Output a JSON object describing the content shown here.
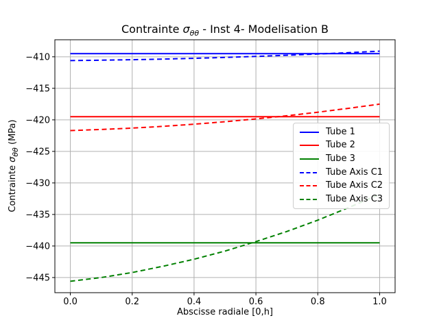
{
  "figure": {
    "background": "#ffffff",
    "spine_color": "#000000",
    "grid_color": "#b0b0b0"
  },
  "title": {
    "prefix": "Contrainte ",
    "math_symbol": "σ",
    "math_subscript": "θθ",
    "suffix": " - Inst 4- Modelisation B"
  },
  "axes": {
    "xlabel": "Abscisse radiale [0,h]",
    "ylabel_prefix": "Contrainte ",
    "ylabel_symbol": "σ",
    "ylabel_subscript": "θθ",
    "ylabel_suffix": " (MPa)"
  },
  "chart_data": {
    "type": "line",
    "title": "Contrainte σθθ - Inst 4- Modelisation B",
    "xlabel": "Abscisse radiale [0,h]",
    "ylabel": "Contrainte σθθ (MPa)",
    "grid": true,
    "xlim": [
      -0.05,
      1.05
    ],
    "ylim": [
      -447.4,
      -407.3
    ],
    "x_ticks": {
      "values": [
        0.0,
        0.2,
        0.4,
        0.6,
        0.8,
        1.0
      ],
      "labels": [
        "0.0",
        "0.2",
        "0.4",
        "0.6",
        "0.8",
        "1.0"
      ]
    },
    "y_ticks": {
      "values": [
        -410,
        -415,
        -420,
        -425,
        -430,
        -435,
        -440,
        -445
      ],
      "labels": [
        "−410",
        "−415",
        "−420",
        "−425",
        "−430",
        "−435",
        "−440",
        "−445"
      ]
    },
    "x": [
      0.0,
      0.1,
      0.2,
      0.3,
      0.4,
      0.5,
      0.6,
      0.7,
      0.8,
      0.9,
      1.0
    ],
    "series": [
      {
        "name": "Tube 1",
        "color": "#0000ff",
        "style": "solid",
        "values": [
          -409.5,
          -409.5,
          -409.5,
          -409.5,
          -409.5,
          -409.5,
          -409.5,
          -409.5,
          -409.5,
          -409.5,
          -409.5
        ]
      },
      {
        "name": "Tube 2",
        "color": "#ff0000",
        "style": "solid",
        "values": [
          -419.5,
          -419.5,
          -419.5,
          -419.5,
          -419.5,
          -419.5,
          -419.5,
          -419.5,
          -419.5,
          -419.5,
          -419.5
        ]
      },
      {
        "name": "Tube 3",
        "color": "#008000",
        "style": "solid",
        "values": [
          -439.5,
          -439.5,
          -439.5,
          -439.5,
          -439.5,
          -439.5,
          -439.5,
          -439.5,
          -439.5,
          -439.5,
          -439.5
        ]
      },
      {
        "name": "Tube Axis C1",
        "color": "#0000ff",
        "style": "dashed",
        "values": [
          -410.6,
          -410.54,
          -410.46,
          -410.36,
          -410.24,
          -410.1,
          -409.94,
          -409.76,
          -409.56,
          -409.34,
          -409.1
        ]
      },
      {
        "name": "Tube Axis C2",
        "color": "#ff0000",
        "style": "dashed",
        "values": [
          -421.7,
          -421.53,
          -421.31,
          -421.03,
          -420.69,
          -420.3,
          -419.85,
          -419.35,
          -418.79,
          -418.17,
          -417.5
        ]
      },
      {
        "name": "Tube Axis C3",
        "color": "#008000",
        "style": "dashed",
        "values": [
          -445.6,
          -445.0,
          -444.2,
          -443.2,
          -442.1,
          -440.8,
          -439.3,
          -437.7,
          -435.9,
          -433.9,
          -431.8
        ]
      }
    ],
    "legend": {
      "position": "center right",
      "entries": [
        "Tube 1",
        "Tube 2",
        "Tube 3",
        "Tube Axis C1",
        "Tube Axis C2",
        "Tube Axis C3"
      ]
    }
  }
}
